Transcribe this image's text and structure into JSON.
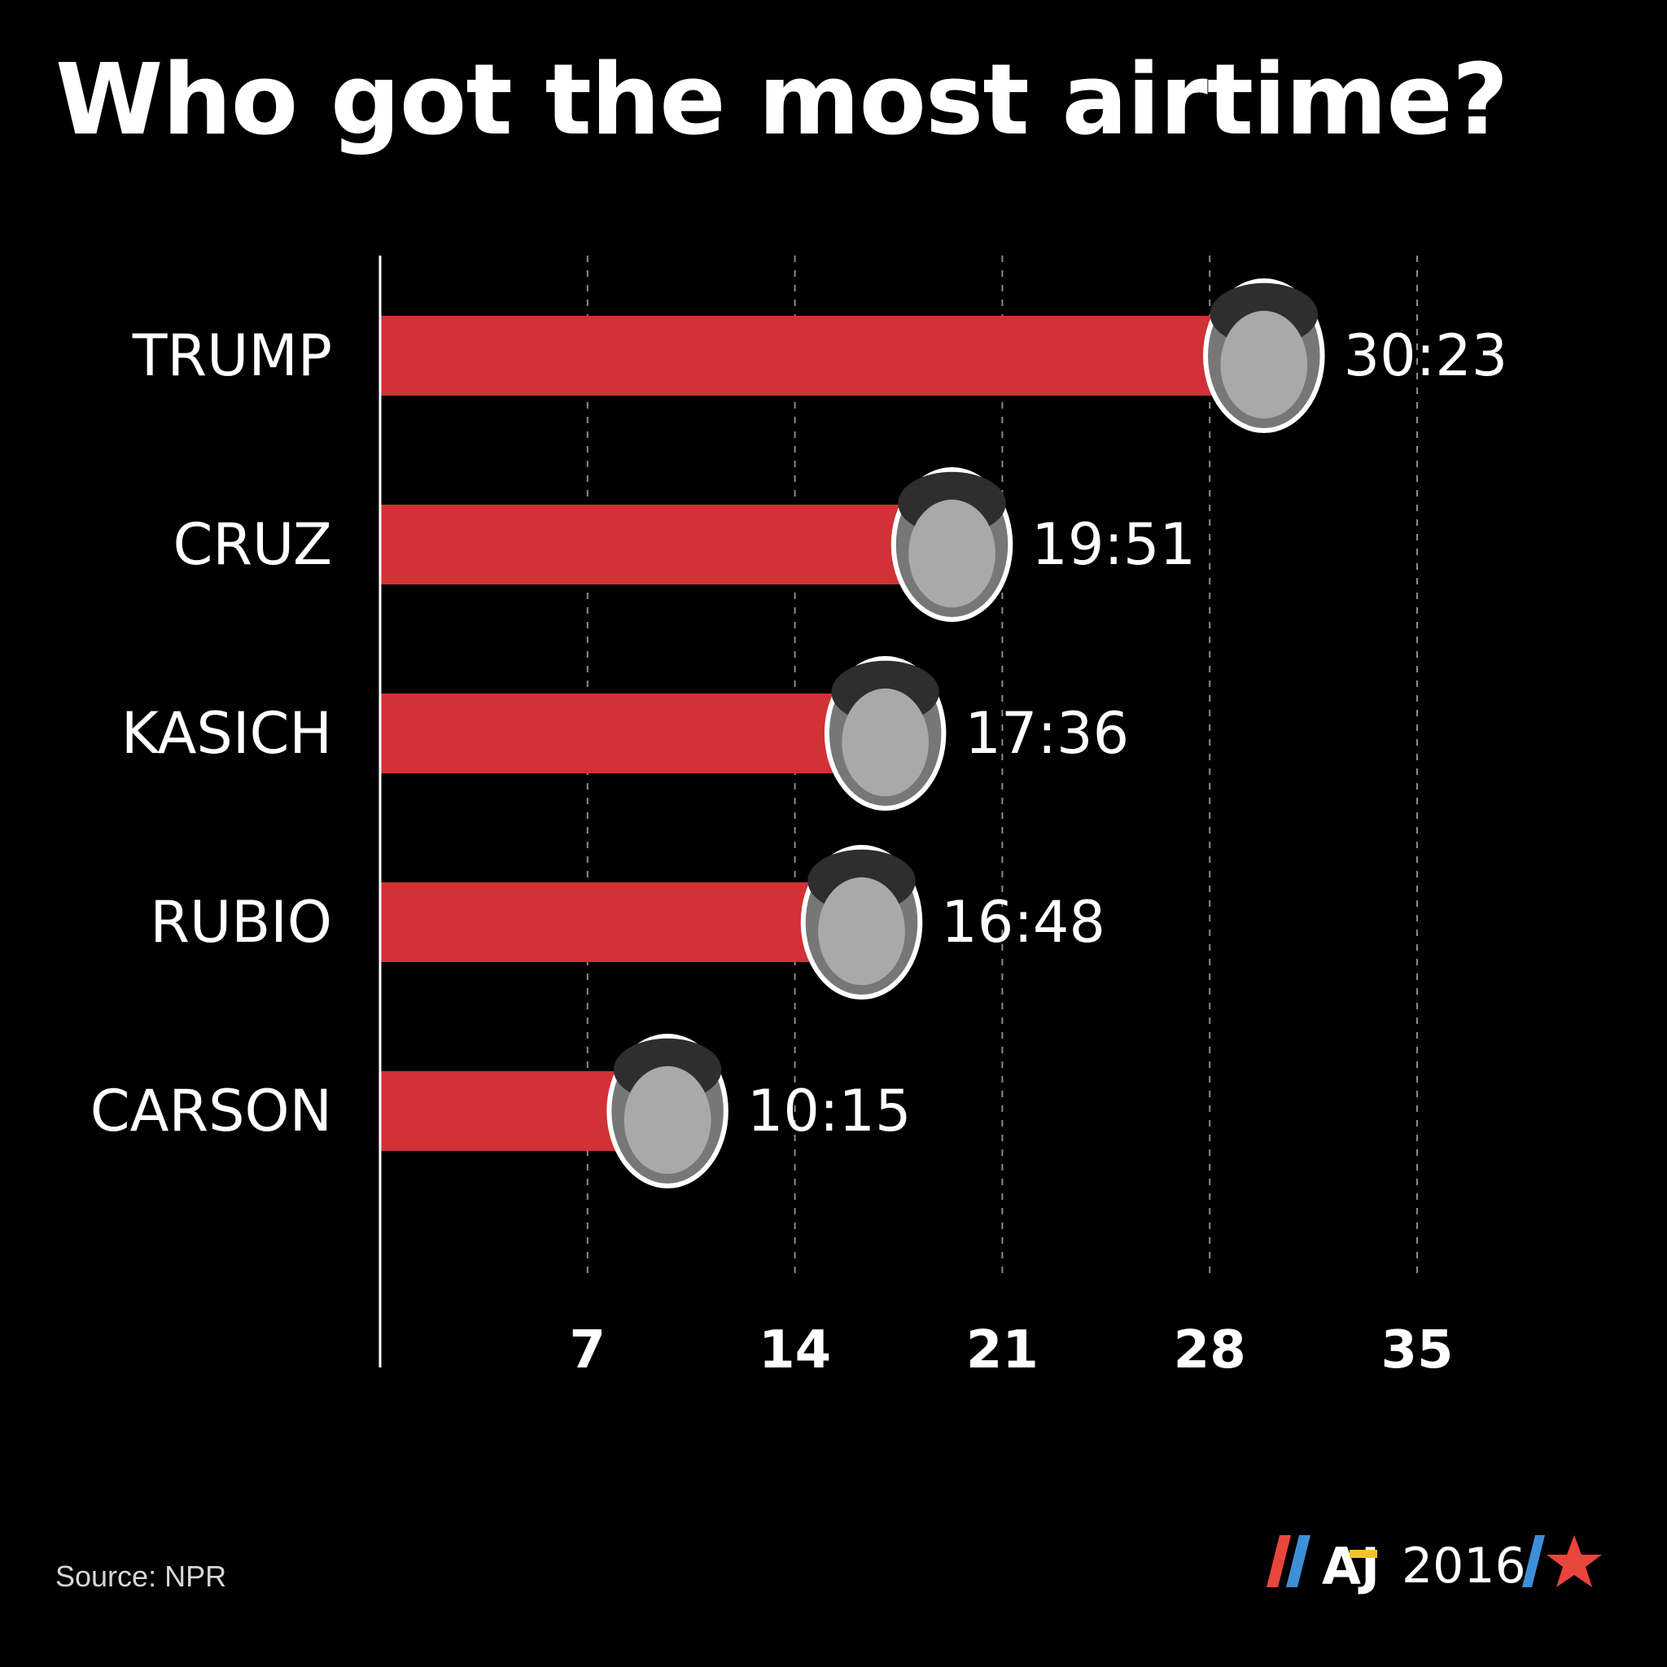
{
  "header": {
    "title": "Who got the most airtime?"
  },
  "footer": {
    "source": "Source: NPR",
    "brand_text": "2016",
    "brand_logo_text": "AJ"
  },
  "colors": {
    "bar": "#d03235",
    "background": "#000000",
    "text": "#ffffff",
    "grid": "#8a8a8a"
  },
  "chart_data": {
    "type": "bar",
    "orientation": "horizontal",
    "title": "Who got the most airtime?",
    "categories": [
      "TRUMP",
      "CRUZ",
      "KASICH",
      "RUBIO",
      "CARSON"
    ],
    "values": [
      30.38,
      19.85,
      17.6,
      16.8,
      10.25
    ],
    "value_labels": [
      "30:23",
      "19:51",
      "17:36",
      "16:48",
      "10:15"
    ],
    "x_ticks": [
      7,
      14,
      21,
      28,
      35
    ],
    "xlim": [
      0,
      35
    ],
    "grid": "vertical dashed",
    "xlabel": "",
    "ylabel": "",
    "portraits": [
      "trump-portrait",
      "cruz-portrait",
      "kasich-portrait",
      "rubio-portrait",
      "carson-portrait"
    ]
  }
}
